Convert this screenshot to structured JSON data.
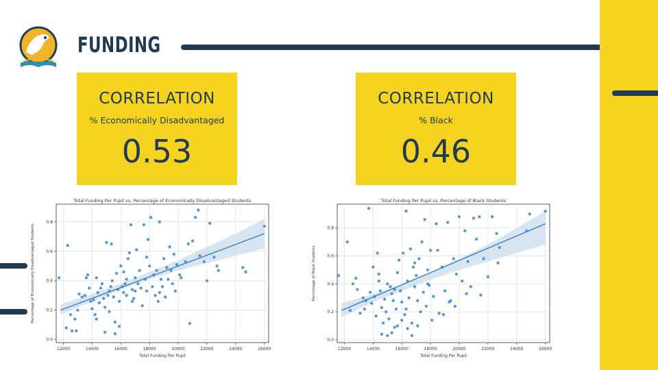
{
  "page": {
    "title": "FUNDING",
    "colors": {
      "navy": "#1f3a52",
      "yellow": "#f5d31e",
      "point": "#4a8ec4",
      "band": "#c9dcee"
    },
    "logo_icon": "education-logo-icon"
  },
  "cards": [
    {
      "heading": "CORRELATION",
      "subtitle": "% Economically Disadvantaged",
      "value": "0.53"
    },
    {
      "heading": "CORRELATION",
      "subtitle": "% Black",
      "value": "0.46"
    }
  ],
  "chart_data": [
    {
      "type": "scatter",
      "title": "Total Funding Per Pupil vs. Percentage of Economically Disadvantaged Students",
      "xlabel": "Total Funding Per Pupil",
      "ylabel": "Percentage of Economically Disadvantaged Students",
      "xlim": [
        11500,
        26300
      ],
      "ylim": [
        -0.02,
        0.92
      ],
      "xticks": [
        12000,
        14000,
        16000,
        18000,
        20000,
        22000,
        24000,
        26000
      ],
      "yticks": [
        0.0,
        0.2,
        0.4,
        0.6,
        0.8
      ],
      "grid": true,
      "regression": {
        "x": [
          11800,
          26000
        ],
        "y": [
          0.2,
          0.72
        ]
      },
      "ci_band": [
        [
          11800,
          0.17,
          0.24
        ],
        [
          14000,
          0.26,
          0.31
        ],
        [
          16000,
          0.34,
          0.38
        ],
        [
          18000,
          0.41,
          0.46
        ],
        [
          20000,
          0.47,
          0.54
        ],
        [
          22000,
          0.52,
          0.63
        ],
        [
          24000,
          0.57,
          0.72
        ],
        [
          26000,
          0.62,
          0.82
        ]
      ],
      "points": [
        [
          11700,
          0.42
        ],
        [
          12300,
          0.64
        ],
        [
          12500,
          0.17
        ],
        [
          12800,
          0.14
        ],
        [
          12600,
          0.06
        ],
        [
          12200,
          0.08
        ],
        [
          12900,
          0.06
        ],
        [
          13100,
          0.31
        ],
        [
          13300,
          0.29
        ],
        [
          13500,
          0.3
        ],
        [
          13600,
          0.42
        ],
        [
          13700,
          0.44
        ],
        [
          13800,
          0.35
        ],
        [
          13900,
          0.26
        ],
        [
          14000,
          0.21
        ],
        [
          14100,
          0.27
        ],
        [
          14200,
          0.17
        ],
        [
          14300,
          0.14
        ],
        [
          14400,
          0.32
        ],
        [
          14500,
          0.25
        ],
        [
          14600,
          0.35
        ],
        [
          14700,
          0.38
        ],
        [
          14800,
          0.28
        ],
        [
          14900,
          0.22
        ],
        [
          15000,
          0.66
        ],
        [
          15100,
          0.3
        ],
        [
          15200,
          0.19
        ],
        [
          15300,
          0.36
        ],
        [
          15350,
          0.65
        ],
        [
          15400,
          0.4
        ],
        [
          15500,
          0.29
        ],
        [
          15600,
          0.12
        ],
        [
          15700,
          0.45
        ],
        [
          15800,
          0.34
        ],
        [
          15900,
          0.26
        ],
        [
          16000,
          0.5
        ],
        [
          16100,
          0.36
        ],
        [
          16200,
          0.32
        ],
        [
          16300,
          0.38
        ],
        [
          16400,
          0.3
        ],
        [
          16500,
          0.55
        ],
        [
          16600,
          0.59
        ],
        [
          16700,
          0.78
        ],
        [
          16800,
          0.34
        ],
        [
          16900,
          0.28
        ],
        [
          17000,
          0.42
        ],
        [
          17100,
          0.61
        ],
        [
          17200,
          0.38
        ],
        [
          17300,
          0.47
        ],
        [
          17400,
          0.35
        ],
        [
          17500,
          0.23
        ],
        [
          17600,
          0.78
        ],
        [
          17700,
          0.41
        ],
        [
          17800,
          0.33
        ],
        [
          17900,
          0.68
        ],
        [
          18000,
          0.5
        ],
        [
          18100,
          0.83
        ],
        [
          18200,
          0.36
        ],
        [
          18300,
          0.44
        ],
        [
          18400,
          0.3
        ],
        [
          18500,
          0.47
        ],
        [
          18600,
          0.26
        ],
        [
          18700,
          0.8
        ],
        [
          18800,
          0.41
        ],
        [
          18900,
          0.36
        ],
        [
          19000,
          0.55
        ],
        [
          19100,
          0.29
        ],
        [
          19200,
          0.49
        ],
        [
          19300,
          0.41
        ],
        [
          19400,
          0.63
        ],
        [
          19500,
          0.47
        ],
        [
          19600,
          0.38
        ],
        [
          19700,
          0.58
        ],
        [
          19800,
          0.33
        ],
        [
          19900,
          0.51
        ],
        [
          20200,
          0.42
        ],
        [
          20500,
          0.53
        ],
        [
          20700,
          0.65
        ],
        [
          20800,
          0.11
        ],
        [
          21000,
          0.67
        ],
        [
          21200,
          0.83
        ],
        [
          21400,
          0.88
        ],
        [
          21500,
          0.57
        ],
        [
          21800,
          0.53
        ],
        [
          22000,
          0.4
        ],
        [
          22200,
          0.79
        ],
        [
          22500,
          0.56
        ],
        [
          22700,
          0.5
        ],
        [
          22800,
          0.47
        ],
        [
          24500,
          0.49
        ],
        [
          24700,
          0.46
        ],
        [
          26000,
          0.77
        ],
        [
          13000,
          0.2
        ],
        [
          14300,
          0.42
        ],
        [
          15600,
          0.04
        ],
        [
          15900,
          0.09
        ],
        [
          16400,
          0.41
        ],
        [
          17000,
          0.33
        ],
        [
          18700,
          0.32
        ],
        [
          20100,
          0.44
        ],
        [
          14900,
          0.05
        ],
        [
          15200,
          0.33
        ],
        [
          16200,
          0.46
        ],
        [
          16800,
          0.26
        ],
        [
          17800,
          0.56
        ]
      ]
    },
    {
      "type": "scatter",
      "title": "Total Funding Per Pupil vs. Percentage of Black Students",
      "xlabel": "Total Funding Per Pupil",
      "ylabel": "Percentage of Black Students",
      "xlim": [
        11500,
        26300
      ],
      "ylim": [
        -0.02,
        0.97
      ],
      "xticks": [
        12000,
        14000,
        16000,
        18000,
        20000,
        22000,
        24000,
        26000
      ],
      "yticks": [
        0.0,
        0.2,
        0.4,
        0.6,
        0.8
      ],
      "grid": true,
      "regression": {
        "x": [
          11800,
          26000
        ],
        "y": [
          0.21,
          0.83
        ]
      },
      "ci_band": [
        [
          11800,
          0.16,
          0.26
        ],
        [
          14000,
          0.27,
          0.33
        ],
        [
          16000,
          0.35,
          0.39
        ],
        [
          18000,
          0.43,
          0.48
        ],
        [
          20000,
          0.5,
          0.58
        ],
        [
          22000,
          0.56,
          0.68
        ],
        [
          24000,
          0.62,
          0.8
        ],
        [
          26000,
          0.68,
          0.92
        ]
      ],
      "points": [
        [
          11600,
          0.46
        ],
        [
          12200,
          0.7
        ],
        [
          12400,
          0.21
        ],
        [
          12600,
          0.4
        ],
        [
          12900,
          0.36
        ],
        [
          13100,
          0.19
        ],
        [
          13300,
          0.3
        ],
        [
          13500,
          0.28
        ],
        [
          13700,
          0.94
        ],
        [
          13800,
          0.34
        ],
        [
          13900,
          0.26
        ],
        [
          14000,
          0.52
        ],
        [
          14100,
          0.31
        ],
        [
          14200,
          0.17
        ],
        [
          14300,
          0.62
        ],
        [
          14400,
          0.42
        ],
        [
          14500,
          0.35
        ],
        [
          14600,
          0.23
        ],
        [
          14700,
          0.12
        ],
        [
          14800,
          0.29
        ],
        [
          14900,
          0.2
        ],
        [
          15000,
          0.4
        ],
        [
          15100,
          0.15
        ],
        [
          15200,
          0.38
        ],
        [
          15300,
          0.33
        ],
        [
          15400,
          0.28
        ],
        [
          15500,
          0.09
        ],
        [
          15600,
          0.22
        ],
        [
          15700,
          0.48
        ],
        [
          15800,
          0.57
        ],
        [
          15900,
          0.35
        ],
        [
          16000,
          0.27
        ],
        [
          16100,
          0.62
        ],
        [
          16200,
          0.18
        ],
        [
          16300,
          0.92
        ],
        [
          16400,
          0.42
        ],
        [
          16500,
          0.3
        ],
        [
          16600,
          0.65
        ],
        [
          16700,
          0.12
        ],
        [
          16800,
          0.52
        ],
        [
          16900,
          0.38
        ],
        [
          17000,
          0.46
        ],
        [
          17100,
          0.28
        ],
        [
          17200,
          0.58
        ],
        [
          17300,
          0.2
        ],
        [
          17400,
          0.7
        ],
        [
          17500,
          0.34
        ],
        [
          17600,
          0.86
        ],
        [
          17700,
          0.24
        ],
        [
          17800,
          0.5
        ],
        [
          17900,
          0.39
        ],
        [
          18000,
          0.64
        ],
        [
          18200,
          0.31
        ],
        [
          18400,
          0.83
        ],
        [
          18600,
          0.19
        ],
        [
          18800,
          0.52
        ],
        [
          19000,
          0.35
        ],
        [
          19200,
          0.84
        ],
        [
          19400,
          0.28
        ],
        [
          19600,
          0.58
        ],
        [
          19800,
          0.47
        ],
        [
          20000,
          0.88
        ],
        [
          20200,
          0.42
        ],
        [
          20400,
          0.78
        ],
        [
          20600,
          0.56
        ],
        [
          20800,
          0.38
        ],
        [
          21000,
          0.87
        ],
        [
          21200,
          0.72
        ],
        [
          21400,
          0.88
        ],
        [
          21500,
          0.32
        ],
        [
          21700,
          0.58
        ],
        [
          22000,
          0.45
        ],
        [
          22300,
          0.88
        ],
        [
          22600,
          0.76
        ],
        [
          22800,
          0.66
        ],
        [
          24700,
          0.78
        ],
        [
          24900,
          0.9
        ],
        [
          26000,
          0.92
        ],
        [
          12800,
          0.44
        ],
        [
          13400,
          0.22
        ],
        [
          14600,
          0.04
        ],
        [
          15000,
          0.03
        ],
        [
          15300,
          0.05
        ],
        [
          15700,
          0.1
        ],
        [
          16000,
          0.14
        ],
        [
          16400,
          0.08
        ],
        [
          16700,
          0.03
        ],
        [
          17100,
          0.1
        ],
        [
          18100,
          0.14
        ],
        [
          19300,
          0.27
        ],
        [
          20500,
          0.33
        ],
        [
          22700,
          0.55
        ],
        [
          16300,
          0.22
        ],
        [
          17800,
          0.4
        ],
        [
          18900,
          0.18
        ],
        [
          19700,
          0.24
        ],
        [
          14400,
          0.47
        ],
        [
          15500,
          0.36
        ],
        [
          16900,
          0.55
        ],
        [
          18500,
          0.64
        ]
      ]
    }
  ]
}
